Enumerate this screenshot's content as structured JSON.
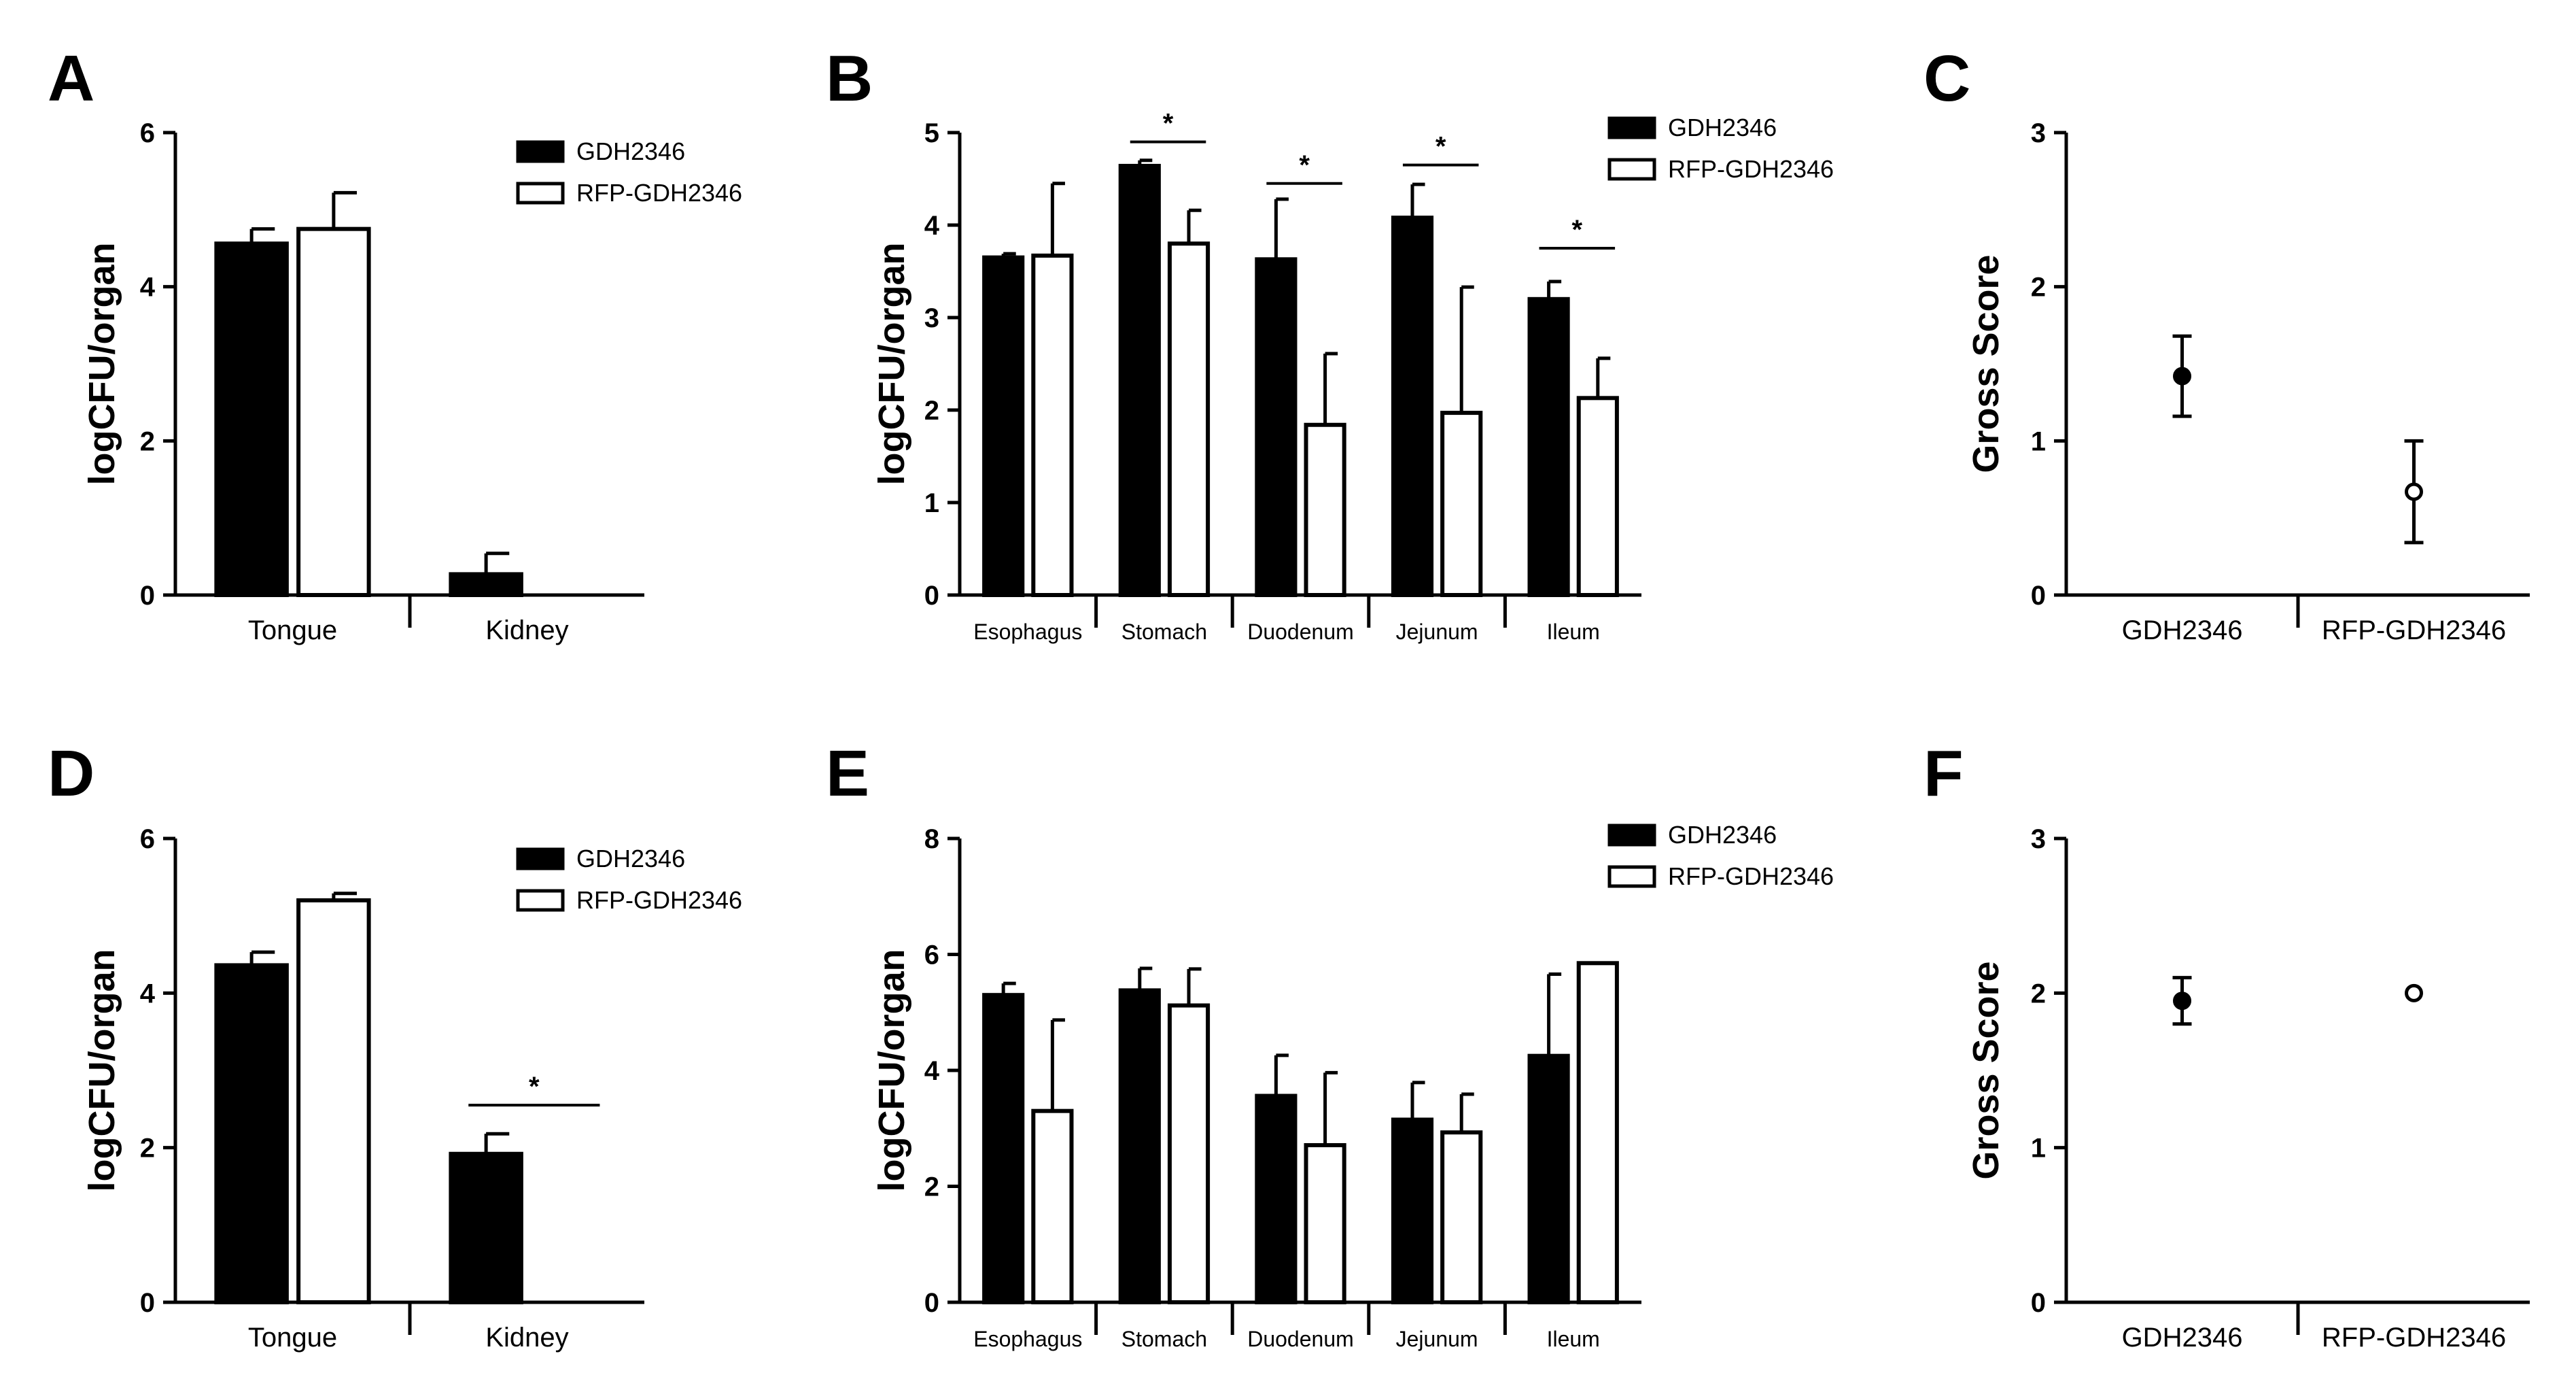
{
  "chart_data": [
    {
      "panel": "A",
      "type": "bar",
      "ylabel": "logCFU/organ",
      "ylim": [
        0,
        6
      ],
      "yticks": [
        0,
        2,
        4,
        6
      ],
      "categories": [
        "Tongue",
        "Kidney"
      ],
      "series": [
        {
          "name": "GDH2346",
          "fill": "black",
          "values": [
            4.56,
            0.27
          ],
          "errors": [
            0.19,
            0.27
          ]
        },
        {
          "name": "RFP-GDH2346",
          "fill": "white",
          "values": [
            4.75,
            0.0
          ],
          "errors": [
            0.47,
            0.0
          ]
        }
      ],
      "significance": [],
      "legend": [
        "GDH2346",
        "RFP-GDH2346"
      ]
    },
    {
      "panel": "B",
      "type": "bar",
      "ylabel": "logCFU/organ",
      "ylim": [
        0,
        5
      ],
      "yticks": [
        0,
        1,
        2,
        3,
        4,
        5
      ],
      "categories": [
        "Esophagus",
        "Stomach",
        "Duodenum",
        "Jejunum",
        "Ileum"
      ],
      "series": [
        {
          "name": "GDH2346",
          "fill": "black",
          "values": [
            3.65,
            4.64,
            3.63,
            4.08,
            3.2
          ],
          "errors": [
            0.04,
            0.06,
            0.65,
            0.36,
            0.19
          ]
        },
        {
          "name": "RFP-GDH2346",
          "fill": "white",
          "values": [
            3.67,
            3.8,
            1.84,
            1.97,
            2.13
          ],
          "errors": [
            0.78,
            0.36,
            0.77,
            1.36,
            0.43
          ]
        }
      ],
      "significance": [
        {
          "category": 1,
          "label": "*",
          "level": 4.9
        },
        {
          "category": 2,
          "label": "*",
          "level": 4.45
        },
        {
          "category": 3,
          "label": "*",
          "level": 4.65
        },
        {
          "category": 4,
          "label": "*",
          "level": 3.75
        }
      ],
      "legend": [
        "GDH2346",
        "RFP-GDH2346"
      ]
    },
    {
      "panel": "C",
      "type": "scatter",
      "ylabel": "Gross  Score",
      "ylim": [
        0,
        3
      ],
      "yticks": [
        0,
        1,
        2,
        3
      ],
      "categories": [
        "GDH2346",
        "RFP-GDH2346"
      ],
      "points": [
        {
          "value": 1.42,
          "error": 0.26,
          "marker": "filled"
        },
        {
          "value": 0.67,
          "error": 0.33,
          "marker": "open"
        }
      ]
    },
    {
      "panel": "D",
      "type": "bar",
      "ylabel": "logCFU/organ",
      "ylim": [
        0,
        6
      ],
      "yticks": [
        0,
        2,
        4,
        6
      ],
      "categories": [
        "Tongue",
        "Kidney"
      ],
      "series": [
        {
          "name": "GDH2346",
          "fill": "black",
          "values": [
            4.36,
            1.92
          ],
          "errors": [
            0.17,
            0.26
          ]
        },
        {
          "name": "RFP-GDH2346",
          "fill": "white",
          "values": [
            5.2,
            0.0
          ],
          "errors": [
            0.09,
            0.0
          ]
        }
      ],
      "significance": [
        {
          "category": 1,
          "label": "*",
          "level": 2.55
        }
      ],
      "legend": [
        "GDH2346",
        "RFP-GDH2346"
      ]
    },
    {
      "panel": "E",
      "type": "bar",
      "ylabel": "logCFU/organ",
      "ylim": [
        0,
        8
      ],
      "yticks": [
        0,
        2,
        4,
        6,
        8
      ],
      "categories": [
        "Esophagus",
        "Stomach",
        "Duodenum",
        "Jejunum",
        "Ileum"
      ],
      "series": [
        {
          "name": "GDH2346",
          "fill": "black",
          "values": [
            5.3,
            5.38,
            3.56,
            3.15,
            4.25
          ],
          "errors": [
            0.2,
            0.38,
            0.7,
            0.64,
            1.41
          ]
        },
        {
          "name": "RFP-GDH2346",
          "fill": "white",
          "values": [
            3.3,
            5.12,
            2.71,
            2.93,
            5.85
          ],
          "errors": [
            1.57,
            0.63,
            1.25,
            0.66,
            0.0
          ]
        }
      ],
      "significance": [],
      "legend": [
        "GDH2346",
        "RFP-GDH2346"
      ]
    },
    {
      "panel": "F",
      "type": "scatter",
      "ylabel": "Gross  Score",
      "ylim": [
        0,
        3
      ],
      "yticks": [
        0,
        1,
        2,
        3
      ],
      "categories": [
        "GDH2346",
        "RFP-GDH2346"
      ],
      "points": [
        {
          "value": 1.95,
          "error": 0.15,
          "marker": "filled"
        },
        {
          "value": 2.0,
          "error": 0.0,
          "marker": "open"
        }
      ]
    }
  ]
}
